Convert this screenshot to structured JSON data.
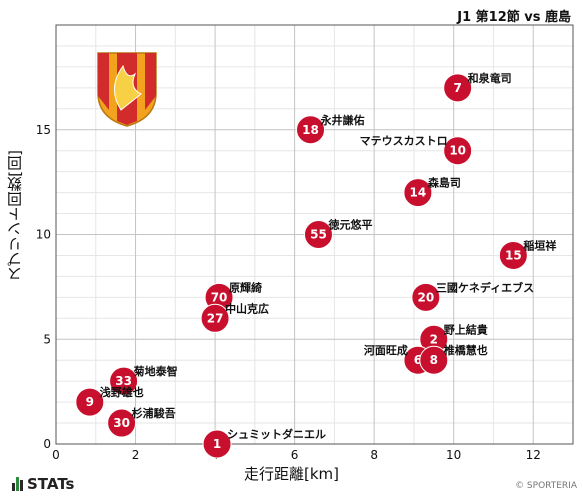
{
  "header": {
    "title": "J1 第12節 vs 鹿島"
  },
  "brand": {
    "label": "STATs",
    "copyright": "© SPORTERIA"
  },
  "crest": {
    "colors": [
      "#f2a21c",
      "#d22b2b"
    ]
  },
  "chart_data": {
    "type": "scatter",
    "title": "",
    "xlabel": "走行距離[km]",
    "ylabel": "スプリント回数[回]",
    "xlim": [
      0,
      13
    ],
    "ylim": [
      0,
      20
    ],
    "xticks": [
      0,
      2,
      4,
      6,
      8,
      10,
      12
    ],
    "yticks": [
      0,
      5,
      10,
      15
    ],
    "grid": true,
    "marker_color": "#c8102e",
    "points": [
      {
        "number": "7",
        "name": "和泉竜司",
        "x": 10.1,
        "y": 17
      },
      {
        "number": "18",
        "name": "永井謙佑",
        "x": 6.4,
        "y": 15
      },
      {
        "number": "10",
        "name": "マテウスカストロ",
        "x": 10.1,
        "y": 14
      },
      {
        "number": "14",
        "name": "森島司",
        "x": 9.1,
        "y": 12
      },
      {
        "number": "55",
        "name": "徳元悠平",
        "x": 6.6,
        "y": 10
      },
      {
        "number": "15",
        "name": "稲垣祥",
        "x": 11.5,
        "y": 9
      },
      {
        "number": "70",
        "name": "原輝綺",
        "x": 4.1,
        "y": 7
      },
      {
        "number": "20",
        "name": "三國ケネディエブス",
        "x": 9.3,
        "y": 7
      },
      {
        "number": "27",
        "name": "中山克広",
        "x": 4.0,
        "y": 6
      },
      {
        "number": "2",
        "name": "野上結貴",
        "x": 9.5,
        "y": 5
      },
      {
        "number": "6",
        "name": "河面旺成",
        "x": 9.1,
        "y": 4
      },
      {
        "number": "8",
        "name": "椎橋慧也",
        "x": 9.5,
        "y": 4
      },
      {
        "number": "33",
        "name": "菊地泰智",
        "x": 1.7,
        "y": 3
      },
      {
        "number": "9",
        "name": "浅野雄也",
        "x": 0.85,
        "y": 2
      },
      {
        "number": "30",
        "name": "杉浦駿吾",
        "x": 1.65,
        "y": 1
      },
      {
        "number": "1",
        "name": "シュミットダニエル",
        "x": 4.05,
        "y": 0
      }
    ]
  }
}
